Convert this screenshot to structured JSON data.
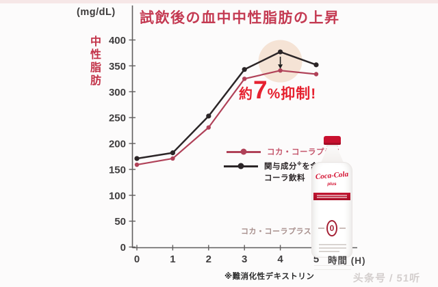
{
  "page": {
    "background": "#fcfbfb",
    "top_strip_color": "#f6e7e7",
    "watermark": "头条号 / 51听"
  },
  "chart": {
    "title": "試飲後の血中中性脂肪の上昇",
    "unit_label": "(mg/dL)",
    "y_axis_title": "中性脂肪",
    "x_axis_label": "時間 (H)",
    "footnote": "※難消化性デキストリン",
    "annotation": {
      "prefix": "約",
      "big_number": "7",
      "suffix": "%抑制!"
    },
    "bottle_caption": "コカ・コーラプラス",
    "colors": {
      "title": "#c43a52",
      "y_axis_title": "#c23248",
      "annotation": "#e6212f",
      "axis": "#5f5d5d",
      "tick_label": "#3f3d3e",
      "highlight": "#f2ddcc",
      "arrow": "#1c1c1c"
    }
  },
  "chart_data": {
    "type": "line",
    "title": "試飲後の血中中性脂肪の上昇",
    "x": [
      0,
      1,
      2,
      3,
      4,
      5
    ],
    "xlabel": "時間 (H)",
    "ylabel": "中性脂肪 (mg/dL)",
    "ylim": [
      0,
      400
    ],
    "ytick_step": 50,
    "grid": false,
    "legend_position": "inside-right",
    "annotation": "約7%抑制!",
    "annotation_at_x": 4,
    "series": [
      {
        "name": "コカ・コーラプラス",
        "color": "#b04158",
        "values": [
          159,
          171,
          231,
          325,
          341,
          334
        ]
      },
      {
        "name": "関与成分※を含まないコーラ飲料",
        "color": "#2b2527",
        "values": [
          171,
          182,
          253,
          343,
          377,
          352
        ]
      }
    ]
  },
  "legend": {
    "item1_label": "コカ・コーラプラス",
    "item2_pre": "関与成分",
    "item2_sup": "※",
    "item2_post": "を含まない",
    "item2_line2": "コーラ飲料"
  },
  "bottle": {
    "logo": "Coca-Cola",
    "logo_sub": "plus",
    "zero_mark": "0",
    "cap_color": "#c8102e",
    "logo_color": "#d30f2f"
  }
}
